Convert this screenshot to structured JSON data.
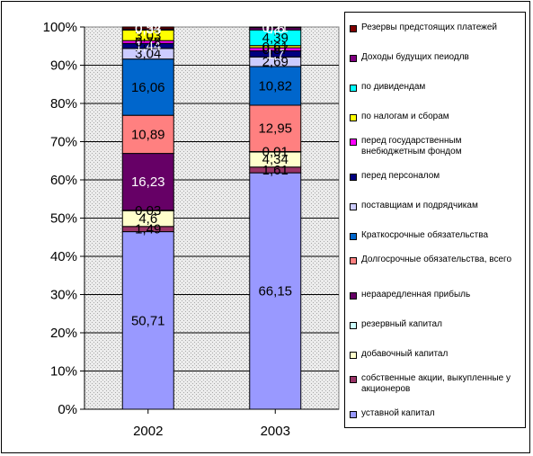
{
  "chart_data": {
    "type": "bar",
    "stacked": "percent",
    "categories": [
      "2002",
      "2003"
    ],
    "y_ticks": [
      "0%",
      "10%",
      "20%",
      "30%",
      "40%",
      "50%",
      "60%",
      "70%",
      "80%",
      "90%",
      "100%"
    ],
    "ylim": [
      0,
      100
    ],
    "grid": true,
    "legend_position": "right",
    "series": [
      {
        "name": "уставной капитал",
        "color": "#9999ff",
        "values": [
          50.71,
          66.15
        ],
        "labels": [
          "50,71",
          "66,15"
        ]
      },
      {
        "name": "собственные акции, выкупленные у акционеров",
        "color": "#993366",
        "values": [
          1.49,
          1.61
        ],
        "labels": [
          "1,49",
          "1,61"
        ]
      },
      {
        "name": "добавочный капитал",
        "color": "#ffffcc",
        "values": [
          4.6,
          4.34
        ],
        "labels": [
          "4,6",
          "4,34"
        ]
      },
      {
        "name": "резервный капитал",
        "color": "#ccffff",
        "values": [
          0.03,
          0.01
        ],
        "labels": [
          "0,03",
          "0,01"
        ]
      },
      {
        "name": "нерааредленная прибыль",
        "color": "#660066",
        "values": [
          16.23,
          0.0
        ],
        "labels": [
          "16,23",
          ""
        ]
      },
      {
        "name": "Долгосрочные обязательства, всего",
        "color": "#ff8080",
        "values": [
          10.89,
          12.95
        ],
        "labels": [
          "10,89",
          "12,95"
        ]
      },
      {
        "name": "Краткосрочные обязательства",
        "color": "#0066cc",
        "values": [
          16.06,
          10.82
        ],
        "labels": [
          "16,06",
          "10,82"
        ]
      },
      {
        "name": "поставщиам и подрядчикам",
        "color": "#ccccff",
        "values": [
          3.04,
          2.69
        ],
        "labels": [
          "3,04",
          "2,69"
        ]
      },
      {
        "name": "перед персоналом",
        "color": "#000080",
        "values": [
          1.44,
          1.7
        ],
        "labels": [
          "1,44",
          "1,7"
        ]
      },
      {
        "name": "перед государственным внебюджетным фондом",
        "color": "#ff00ff",
        "values": [
          0.78,
          0.87
        ],
        "labels": [
          "0,78",
          "0,87"
        ]
      },
      {
        "name": "по налогам и сборам",
        "color": "#ffff00",
        "values": [
          3.03,
          0.61
        ],
        "labels": [
          "3,03",
          "0,61"
        ]
      },
      {
        "name": "по дивидендам",
        "color": "#00ffff",
        "values": [
          0.0,
          4.39
        ],
        "labels": [
          "",
          "4,39"
        ]
      },
      {
        "name": "Доходы будущих пеиодлв",
        "color": "#800080",
        "values": [
          0.33,
          0.6
        ],
        "labels": [
          "0,33",
          "0,6"
        ]
      },
      {
        "name": "Резервы предстоящих платежей",
        "color": "#800000",
        "values": [
          0.54,
          0.21
        ],
        "labels": [
          "0,54",
          "0,21"
        ]
      }
    ]
  }
}
